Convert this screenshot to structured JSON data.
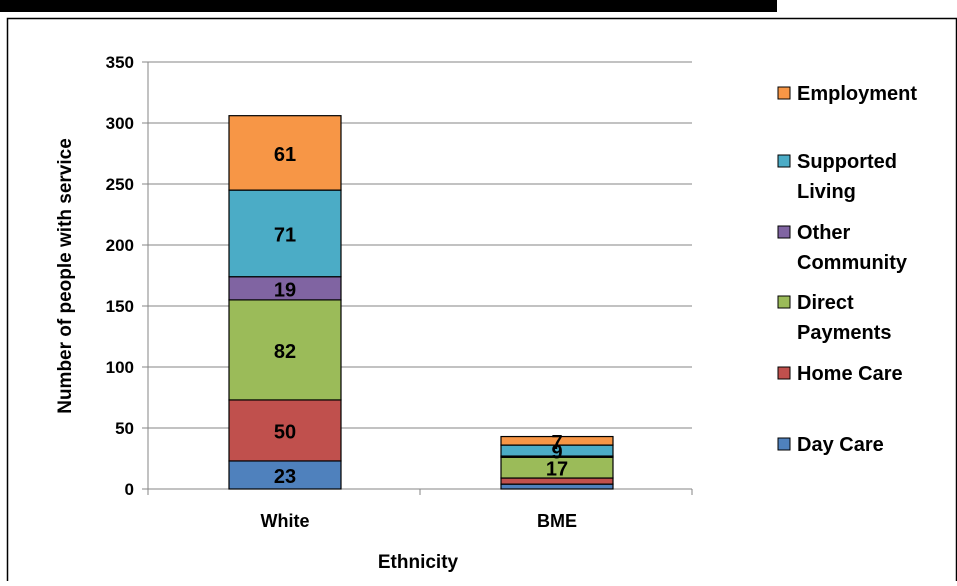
{
  "chart_data": {
    "type": "bar",
    "stacked": true,
    "categories": [
      "White",
      "BME"
    ],
    "xlabel": "Ethnicity",
    "ylabel": "Number of people with service",
    "ylim": [
      0,
      350
    ],
    "yticks": [
      0,
      50,
      100,
      150,
      200,
      250,
      300,
      350
    ],
    "grid": true,
    "legend_position": "right",
    "series": [
      {
        "name": "Day Care",
        "color": "#4F81BD",
        "values": [
          23,
          4
        ]
      },
      {
        "name": "Home Care",
        "color": "#C0504D",
        "values": [
          50,
          5
        ]
      },
      {
        "name": "Direct Payments",
        "color": "#9BBB59",
        "values": [
          82,
          17
        ]
      },
      {
        "name": "Other Community",
        "color": "#8064A2",
        "values": [
          19,
          1
        ]
      },
      {
        "name": "Supported Living",
        "color": "#4BACC6",
        "values": [
          71,
          9
        ]
      },
      {
        "name": "Employment",
        "color": "#F79646",
        "values": [
          61,
          7
        ]
      }
    ],
    "data_labels": [
      {
        "series": "Day Care",
        "values": [
          "23",
          ""
        ]
      },
      {
        "series": "Home Care",
        "values": [
          "50",
          ""
        ]
      },
      {
        "series": "Direct Payments",
        "values": [
          "82",
          "17"
        ]
      },
      {
        "series": "Other Community",
        "values": [
          "19",
          ""
        ]
      },
      {
        "series": "Supported Living",
        "values": [
          "71",
          "9"
        ]
      },
      {
        "series": "Employment",
        "values": [
          "61",
          "7"
        ]
      }
    ],
    "legend": [
      {
        "label_lines": [
          "Employment"
        ],
        "series": "Employment"
      },
      {
        "label_lines": [
          "Supported",
          "Living"
        ],
        "series": "Supported Living"
      },
      {
        "label_lines": [
          "Other",
          "Community"
        ],
        "series": "Other Community"
      },
      {
        "label_lines": [
          "Direct",
          "Payments"
        ],
        "series": "Direct Payments"
      },
      {
        "label_lines": [
          "Home Care"
        ],
        "series": "Home Care"
      },
      {
        "label_lines": [
          "Day Care"
        ],
        "series": "Day Care"
      }
    ]
  }
}
